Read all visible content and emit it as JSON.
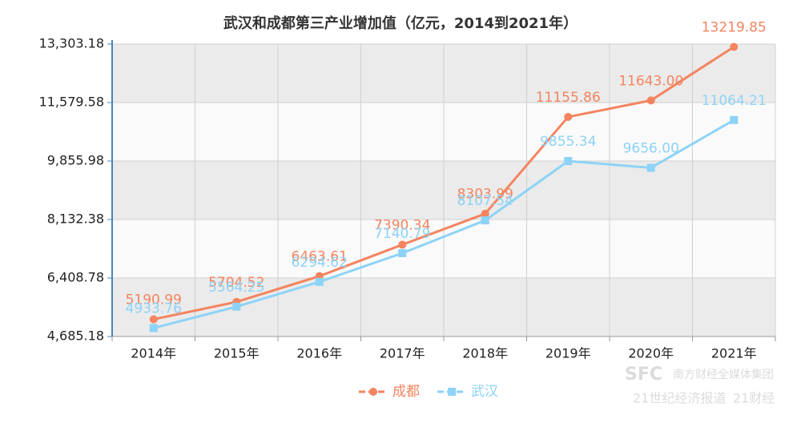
{
  "chart_data": {
    "type": "line",
    "title": "武汉和成都第三产业增加值（亿元，2014到2021年）",
    "categories": [
      "2014年",
      "2015年",
      "2016年",
      "2017年",
      "2018年",
      "2019年",
      "2020年",
      "2021年"
    ],
    "series": [
      {
        "name": "成都",
        "color": "#f4845f",
        "marker": "circle",
        "values": [
          5190.99,
          5704.52,
          6463.61,
          7390.34,
          8303.99,
          11155.86,
          11643.0,
          13219.85
        ],
        "value_labels": [
          "5190.99",
          "5704.52",
          "6463.61",
          "7390.34",
          "8303.99",
          "11155.86",
          "11643.00",
          "13219.85"
        ]
      },
      {
        "name": "武汉",
        "color": "#8dd3f7",
        "marker": "square",
        "values": [
          4933.76,
          5564.25,
          6294.62,
          7140.79,
          8107.54,
          9855.34,
          9656.0,
          11064.21
        ],
        "value_labels": [
          "4933.76",
          "5564.25",
          "6294.62",
          "7140.79",
          "8107.54",
          "9855.34",
          "9656.00",
          "11064.21"
        ]
      }
    ],
    "ylim": [
      4685.18,
      13303.18
    ],
    "yticks": [
      {
        "value": 4685.18,
        "label": "4,685.18"
      },
      {
        "value": 6408.78,
        "label": "6,408.78"
      },
      {
        "value": 8132.38,
        "label": "8,132.38"
      },
      {
        "value": 9855.98,
        "label": "9,855.98"
      },
      {
        "value": 11579.58,
        "label": "11,579.58"
      },
      {
        "value": 13303.18,
        "label": "13,303.18"
      }
    ],
    "grid": true,
    "legend": "bottom",
    "watermark": [
      "SFC",
      "南方财经全媒体集团",
      "21世纪经济报道",
      "21财经"
    ]
  }
}
